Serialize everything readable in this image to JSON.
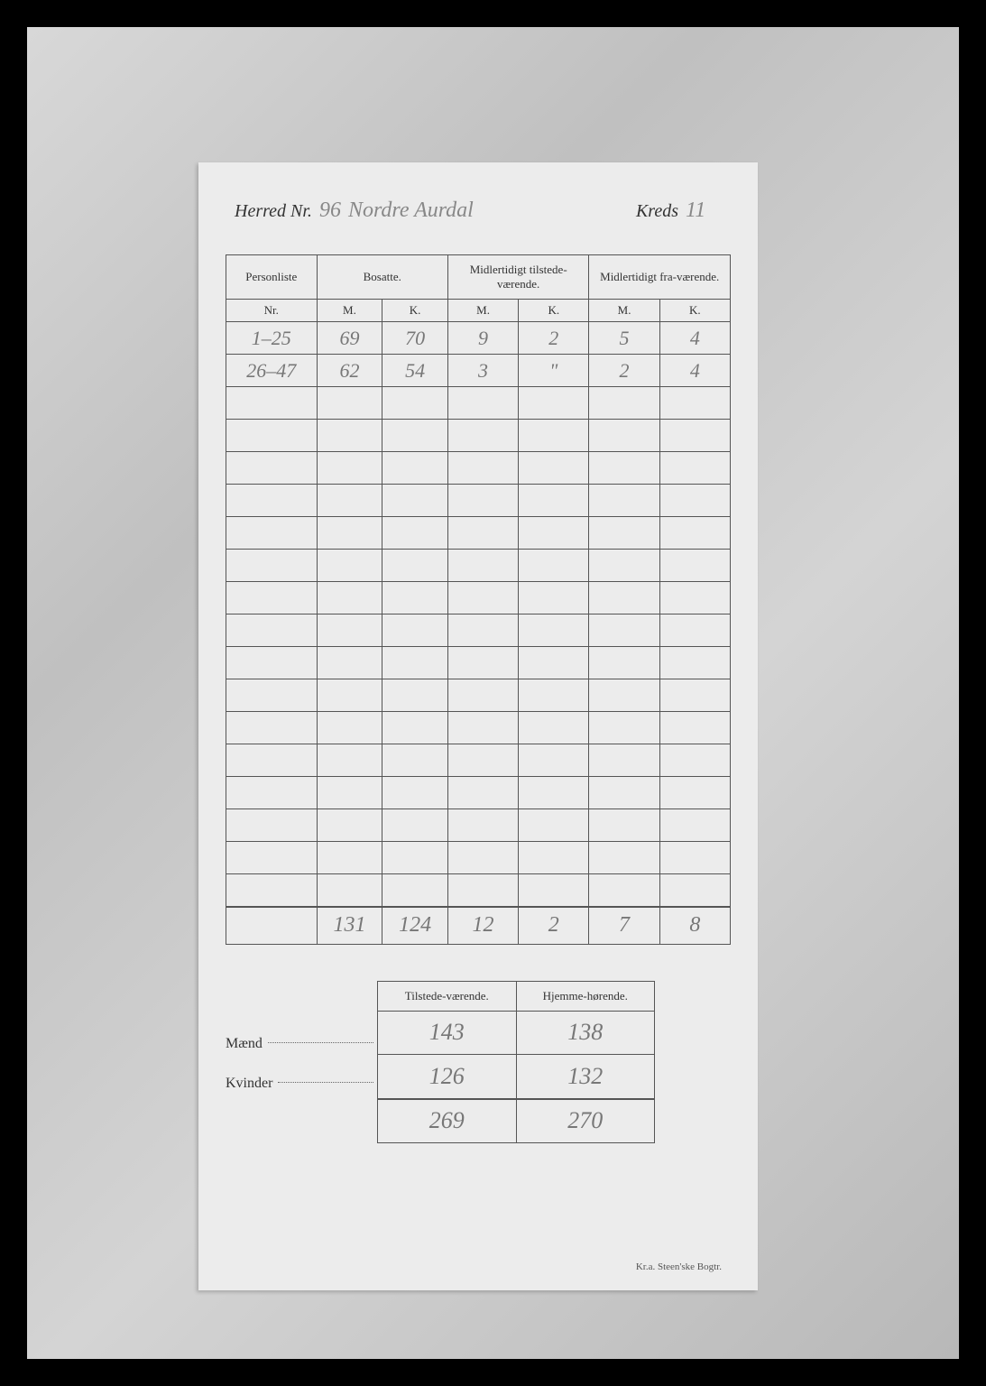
{
  "header": {
    "herred_label": "Herred Nr.",
    "herred_nr": "96",
    "herred_name": "Nordre Aurdal",
    "kreds_label": "Kreds",
    "kreds_nr": "11"
  },
  "main_table": {
    "columns": {
      "personliste": "Personliste",
      "bosatte": "Bosatte.",
      "midl_tilstede": "Midlertidigt tilstede-værende.",
      "midl_fra": "Midlertidigt fra-værende.",
      "nr": "Nr.",
      "m": "M.",
      "k": "K."
    },
    "rows": [
      {
        "nr": "1–25",
        "bm": "69",
        "bk": "70",
        "tm": "9",
        "tk": "2",
        "fm": "5",
        "fk": "4"
      },
      {
        "nr": "26–47",
        "bm": "62",
        "bk": "54",
        "tm": "3",
        "tk": "\"",
        "fm": "2",
        "fk": "4"
      }
    ],
    "empty_row_count": 16,
    "totals": {
      "nr": "",
      "bm": "131",
      "bk": "124",
      "tm": "12",
      "tk": "2",
      "fm": "7",
      "fk": "8"
    }
  },
  "summary_table": {
    "columns": {
      "tilstede": "Tilstede-værende.",
      "hjemme": "Hjemme-hørende."
    },
    "rows": [
      {
        "label": "Mænd",
        "tilstede": "143",
        "hjemme": "138"
      },
      {
        "label": "Kvinder",
        "tilstede": "126",
        "hjemme": "132"
      }
    ],
    "totals": {
      "tilstede": "269",
      "hjemme": "270"
    }
  },
  "footer": "Kr.a. Steen'ske Bogtr.",
  "style": {
    "page_bg": "#000000",
    "photo_bg": "#c8c8c8",
    "sheet_bg": "#ececec",
    "border_color": "#555555",
    "print_text_color": "#333333",
    "handwriting_color": "#777777",
    "handwriting_font": "Brush Script MT, cursive",
    "print_font": "Georgia, Times New Roman, serif",
    "col_widths_pct": [
      18,
      13,
      13,
      14,
      14,
      14,
      14
    ]
  }
}
